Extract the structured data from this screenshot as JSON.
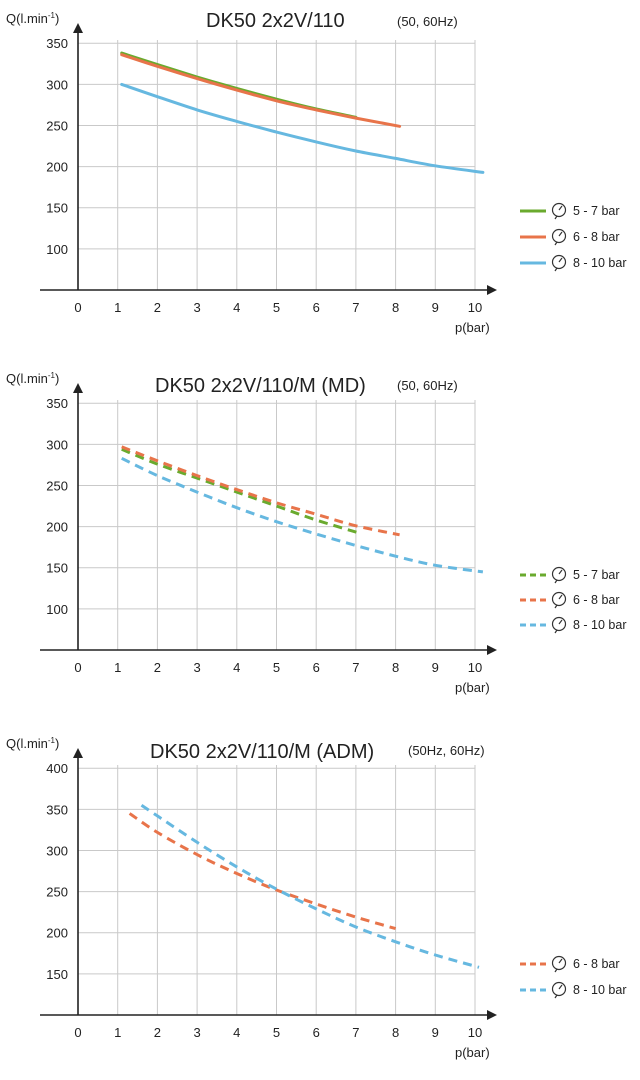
{
  "colors": {
    "green": "#6aaa2e",
    "orange": "#e8744a",
    "blue": "#66b8e0"
  },
  "chart_data": [
    {
      "type": "line",
      "title": "DK50 2x2V/110",
      "subtitle": "(50, 60Hz)",
      "ylabel_main": "Q(l.min",
      "ylabel_sup": "-1",
      "ylabel_end": ")",
      "xlabel": "p(bar)",
      "xlim": [
        0,
        10
      ],
      "ylim": [
        50,
        360
      ],
      "xticks": [
        "0",
        "1",
        "2",
        "3",
        "4",
        "5",
        "6",
        "7",
        "8",
        "9",
        "10"
      ],
      "yticks": [
        {
          "value": 100,
          "label": "100"
        },
        {
          "value": 150,
          "label": "150"
        },
        {
          "value": 200,
          "label": "200"
        },
        {
          "value": 250,
          "label": "250"
        },
        {
          "value": 300,
          "label": "300"
        },
        {
          "value": 350,
          "label": "350"
        }
      ],
      "grid": true,
      "legend_position": "right",
      "series": [
        {
          "name": "5 - 7 bar",
          "color": "#6aaa2e",
          "dashed": false,
          "x": [
            1.1,
            2,
            3,
            4,
            5,
            6,
            7
          ],
          "y": [
            338,
            324,
            309,
            295,
            282,
            270,
            260
          ]
        },
        {
          "name": "6 - 8 bar",
          "color": "#e8744a",
          "dashed": false,
          "x": [
            1.1,
            2,
            3,
            4,
            5,
            6,
            7,
            8.1
          ],
          "y": [
            336,
            322,
            307,
            293,
            280,
            269,
            259,
            249
          ]
        },
        {
          "name": "8 - 10 bar",
          "color": "#66b8e0",
          "dashed": false,
          "x": [
            1.1,
            2,
            3,
            4,
            5,
            6,
            7,
            8,
            9,
            10.2
          ],
          "y": [
            300,
            285,
            269,
            255,
            242,
            230,
            219,
            210,
            201,
            193
          ]
        }
      ]
    },
    {
      "type": "line",
      "title": "DK50 2x2V/110/M (MD)",
      "subtitle": "(50, 60Hz)",
      "ylabel_main": "Q(l.min",
      "ylabel_sup": "-1",
      "ylabel_end": ")",
      "xlabel": "p(bar)",
      "xlim": [
        0,
        10
      ],
      "ylim": [
        50,
        360
      ],
      "xticks": [
        "0",
        "1",
        "2",
        "3",
        "4",
        "5",
        "6",
        "7",
        "8",
        "9",
        "10"
      ],
      "yticks": [
        {
          "value": 100,
          "label": "100"
        },
        {
          "value": 150,
          "label": "150"
        },
        {
          "value": 200,
          "label": "200"
        },
        {
          "value": 250,
          "label": "250"
        },
        {
          "value": 300,
          "label": "300"
        },
        {
          "value": 350,
          "label": "350"
        }
      ],
      "grid": true,
      "legend_position": "right",
      "series": [
        {
          "name": "5 - 7 bar",
          "color": "#6aaa2e",
          "dashed": true,
          "x": [
            1.1,
            2,
            3,
            4,
            5,
            6,
            7.1
          ],
          "y": [
            294,
            276,
            259,
            242,
            225,
            208,
            192
          ]
        },
        {
          "name": "6 - 8 bar",
          "color": "#e8744a",
          "dashed": true,
          "x": [
            1.1,
            2,
            3,
            4,
            5,
            6,
            7,
            8.1
          ],
          "y": [
            297,
            280,
            262,
            245,
            229,
            215,
            201,
            190
          ]
        },
        {
          "name": "8 - 10 bar",
          "color": "#66b8e0",
          "dashed": true,
          "x": [
            1.1,
            2,
            3,
            4,
            5,
            6,
            7,
            8,
            9,
            10.2
          ],
          "y": [
            283,
            262,
            242,
            223,
            206,
            191,
            177,
            164,
            153,
            145
          ]
        }
      ]
    },
    {
      "type": "line",
      "title": "DK50 2x2V/110/M (ADM)",
      "subtitle": "(50Hz, 60Hz)",
      "ylabel_main": "Q(l.min",
      "ylabel_sup": "-1",
      "ylabel_end": ")",
      "xlabel": "p(bar)",
      "xlim": [
        0,
        10
      ],
      "ylim": [
        100,
        410
      ],
      "xticks": [
        "0",
        "1",
        "2",
        "3",
        "4",
        "5",
        "6",
        "7",
        "8",
        "9",
        "10"
      ],
      "yticks": [
        {
          "value": 150,
          "label": "150"
        },
        {
          "value": 200,
          "label": "200"
        },
        {
          "value": 250,
          "label": "250"
        },
        {
          "value": 300,
          "label": "300"
        },
        {
          "value": 350,
          "label": "350"
        },
        {
          "value": 400,
          "label": "400"
        }
      ],
      "grid": true,
      "legend_position": "right",
      "series": [
        {
          "name": "6 - 8 bar",
          "color": "#e8744a",
          "dashed": true,
          "x": [
            1.3,
            2,
            3,
            4,
            5,
            6,
            7,
            8
          ],
          "y": [
            345,
            322,
            295,
            272,
            252,
            235,
            219,
            205
          ]
        },
        {
          "name": "8 - 10 bar",
          "color": "#66b8e0",
          "dashed": true,
          "x": [
            1.6,
            2,
            3,
            4,
            5,
            6,
            7,
            8,
            9,
            10.1
          ],
          "y": [
            355,
            342,
            310,
            280,
            253,
            229,
            207,
            189,
            173,
            158
          ]
        }
      ]
    }
  ]
}
